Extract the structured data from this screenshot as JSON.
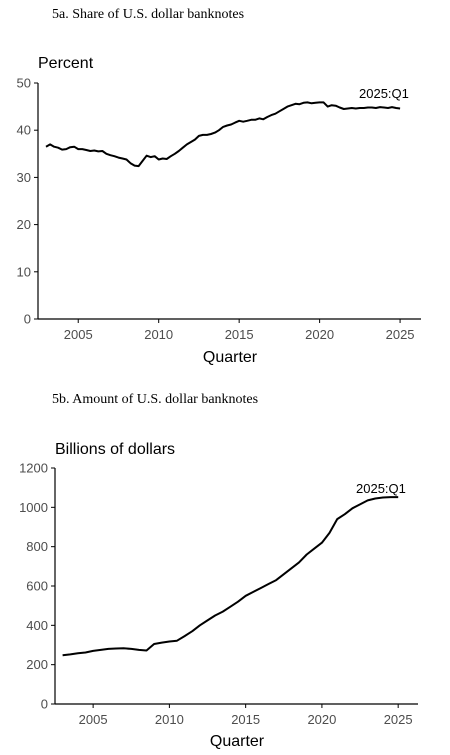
{
  "chart_data": [
    {
      "type": "line",
      "title": "5a. Share of U.S. dollar banknotes",
      "ylabel": "Percent",
      "xlabel": "Quarter",
      "annotation": "2025:Q1",
      "xlim": [
        2002.5,
        2026.3
      ],
      "ylim": [
        0,
        50
      ],
      "xticks": [
        2005,
        2010,
        2015,
        2020,
        2025
      ],
      "yticks": [
        0,
        10,
        20,
        30,
        40,
        50
      ],
      "grid": false,
      "series": [
        {
          "x": [
            2003.0,
            2003.25,
            2003.5,
            2003.75,
            2004.0,
            2004.25,
            2004.5,
            2004.75,
            2005.0,
            2005.25,
            2005.5,
            2005.75,
            2006.0,
            2006.25,
            2006.5,
            2006.75,
            2007.0,
            2007.25,
            2007.5,
            2007.75,
            2008.0,
            2008.25,
            2008.5,
            2008.75,
            2009.0,
            2009.25,
            2009.5,
            2009.75,
            2010.0,
            2010.25,
            2010.5,
            2010.75,
            2011.0,
            2011.25,
            2011.5,
            2011.75,
            2012.0,
            2012.25,
            2012.5,
            2012.75,
            2013.0,
            2013.25,
            2013.5,
            2013.75,
            2014.0,
            2014.25,
            2014.5,
            2014.75,
            2015.0,
            2015.25,
            2015.5,
            2015.75,
            2016.0,
            2016.25,
            2016.5,
            2016.75,
            2017.0,
            2017.25,
            2017.5,
            2017.75,
            2018.0,
            2018.25,
            2018.5,
            2018.75,
            2019.0,
            2019.25,
            2019.5,
            2019.75,
            2020.0,
            2020.25,
            2020.5,
            2020.75,
            2021.0,
            2021.25,
            2021.5,
            2021.75,
            2022.0,
            2022.25,
            2022.5,
            2022.75,
            2023.0,
            2023.25,
            2023.5,
            2023.75,
            2024.0,
            2024.25,
            2024.5,
            2024.75,
            2025.0
          ],
          "y": [
            36.5,
            37.0,
            36.5,
            36.3,
            35.9,
            36.0,
            36.4,
            36.5,
            36.0,
            36.0,
            35.8,
            35.6,
            35.7,
            35.5,
            35.6,
            35.0,
            34.7,
            34.5,
            34.2,
            34.0,
            33.8,
            33.0,
            32.5,
            32.4,
            33.5,
            34.6,
            34.3,
            34.5,
            33.8,
            34.0,
            33.9,
            34.5,
            35.0,
            35.6,
            36.3,
            37.0,
            37.5,
            38.0,
            38.8,
            39.0,
            39.0,
            39.2,
            39.5,
            40.0,
            40.7,
            41.0,
            41.2,
            41.6,
            42.0,
            41.8,
            42.0,
            42.2,
            42.2,
            42.5,
            42.3,
            42.8,
            43.2,
            43.5,
            44.0,
            44.5,
            45.0,
            45.3,
            45.6,
            45.5,
            45.8,
            45.9,
            45.7,
            45.8,
            45.9,
            45.9,
            45.0,
            45.3,
            45.2,
            44.8,
            44.5,
            44.6,
            44.7,
            44.6,
            44.7,
            44.7,
            44.8,
            44.8,
            44.7,
            44.9,
            44.8,
            44.7,
            44.9,
            44.7,
            44.6
          ]
        }
      ]
    },
    {
      "type": "line",
      "title": "5b. Amount of U.S. dollar banknotes",
      "ylabel": "Billions of dollars",
      "xlabel": "Quarter",
      "annotation": "2025:Q1",
      "xlim": [
        2002.5,
        2026.3
      ],
      "ylim": [
        0,
        1200
      ],
      "xticks": [
        2005,
        2010,
        2015,
        2020,
        2025
      ],
      "yticks": [
        0,
        200,
        400,
        600,
        800,
        1000,
        1200
      ],
      "grid": false,
      "series": [
        {
          "x": [
            2003.0,
            2003.5,
            2004.0,
            2004.5,
            2005.0,
            2005.5,
            2006.0,
            2006.5,
            2007.0,
            2007.5,
            2008.0,
            2008.5,
            2009.0,
            2009.5,
            2010.0,
            2010.5,
            2011.0,
            2011.5,
            2012.0,
            2012.5,
            2013.0,
            2013.5,
            2014.0,
            2014.5,
            2015.0,
            2015.5,
            2016.0,
            2016.5,
            2017.0,
            2017.5,
            2018.0,
            2018.5,
            2019.0,
            2019.5,
            2020.0,
            2020.5,
            2021.0,
            2021.5,
            2022.0,
            2022.5,
            2023.0,
            2023.5,
            2024.0,
            2024.5,
            2025.0
          ],
          "y": [
            248,
            252,
            258,
            262,
            270,
            275,
            280,
            282,
            283,
            280,
            275,
            272,
            305,
            312,
            318,
            322,
            345,
            370,
            400,
            425,
            450,
            470,
            495,
            520,
            550,
            570,
            590,
            610,
            630,
            660,
            690,
            720,
            760,
            790,
            820,
            870,
            940,
            965,
            995,
            1015,
            1035,
            1045,
            1050,
            1052,
            1052
          ]
        }
      ]
    }
  ]
}
